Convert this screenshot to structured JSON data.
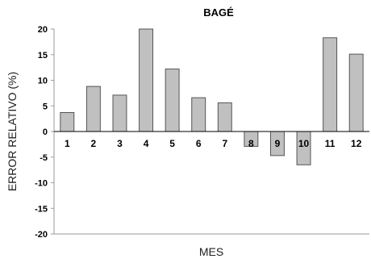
{
  "chart_data": {
    "type": "bar",
    "title": "BAGÉ",
    "xlabel": "MES",
    "ylabel": "ERROR RELATIVO (%)",
    "categories": [
      "1",
      "2",
      "3",
      "4",
      "5",
      "6",
      "7",
      "8",
      "9",
      "10",
      "11",
      "12"
    ],
    "values": [
      3.7,
      8.8,
      7.1,
      20.0,
      12.2,
      6.6,
      5.6,
      -2.9,
      -4.7,
      -6.5,
      18.3,
      15.1
    ],
    "ylim": [
      -20,
      20
    ],
    "yticks": [
      20,
      15,
      10,
      5,
      0,
      -5,
      -10,
      -15,
      -20
    ],
    "grid": false,
    "legend": "none",
    "colors": {
      "bar_fill": "#c0c0c0",
      "bar_stroke": "#555555",
      "axis": "#000000",
      "frame": "#9a9a9a"
    }
  }
}
